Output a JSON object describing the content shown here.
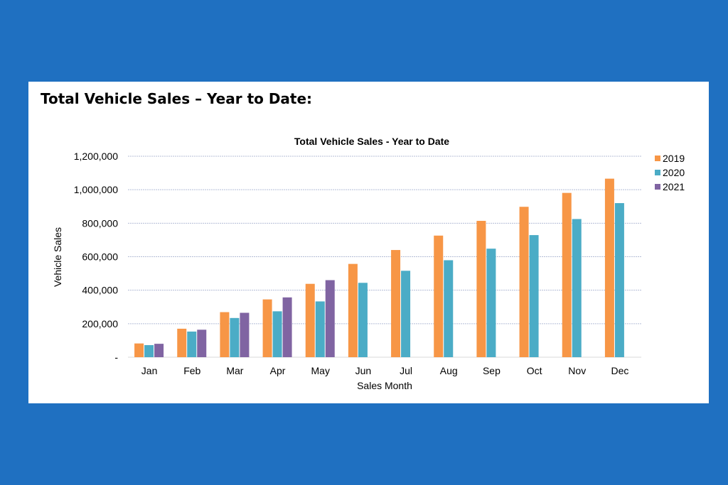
{
  "page": {
    "heading": "Total Vehicle Sales – Year to Date:"
  },
  "colors": {
    "background": "#1f70c1",
    "2019": "#f79646",
    "2020": "#4bacc6",
    "2021": "#8064a2"
  },
  "chart_data": {
    "type": "bar",
    "title": "Total Vehicle Sales - Year to Date",
    "xlabel": "Sales Month",
    "ylabel": "Vehicle Sales",
    "ylim": [
      0,
      1200000
    ],
    "yticks": [
      0,
      200000,
      400000,
      600000,
      800000,
      1000000,
      1200000
    ],
    "ytick_labels": [
      "-",
      "200,000",
      "400,000",
      "600,000",
      "800,000",
      "1,000,000",
      "1,200,000"
    ],
    "grid": true,
    "legend": "right",
    "categories": [
      "Jan",
      "Feb",
      "Mar",
      "Apr",
      "May",
      "Jun",
      "Jul",
      "Aug",
      "Sep",
      "Oct",
      "Nov",
      "Dec"
    ],
    "series": [
      {
        "name": "2019",
        "values": [
          82000,
          170000,
          269000,
          345000,
          438000,
          557000,
          640000,
          726000,
          814000,
          898000,
          981000,
          1066000
        ]
      },
      {
        "name": "2020",
        "values": [
          72000,
          153000,
          234000,
          274000,
          333000,
          444000,
          516000,
          579000,
          648000,
          729000,
          825000,
          920000
        ]
      },
      {
        "name": "2021",
        "values": [
          80000,
          164000,
          265000,
          357000,
          460000,
          null,
          null,
          null,
          null,
          null,
          null,
          null
        ]
      }
    ]
  }
}
